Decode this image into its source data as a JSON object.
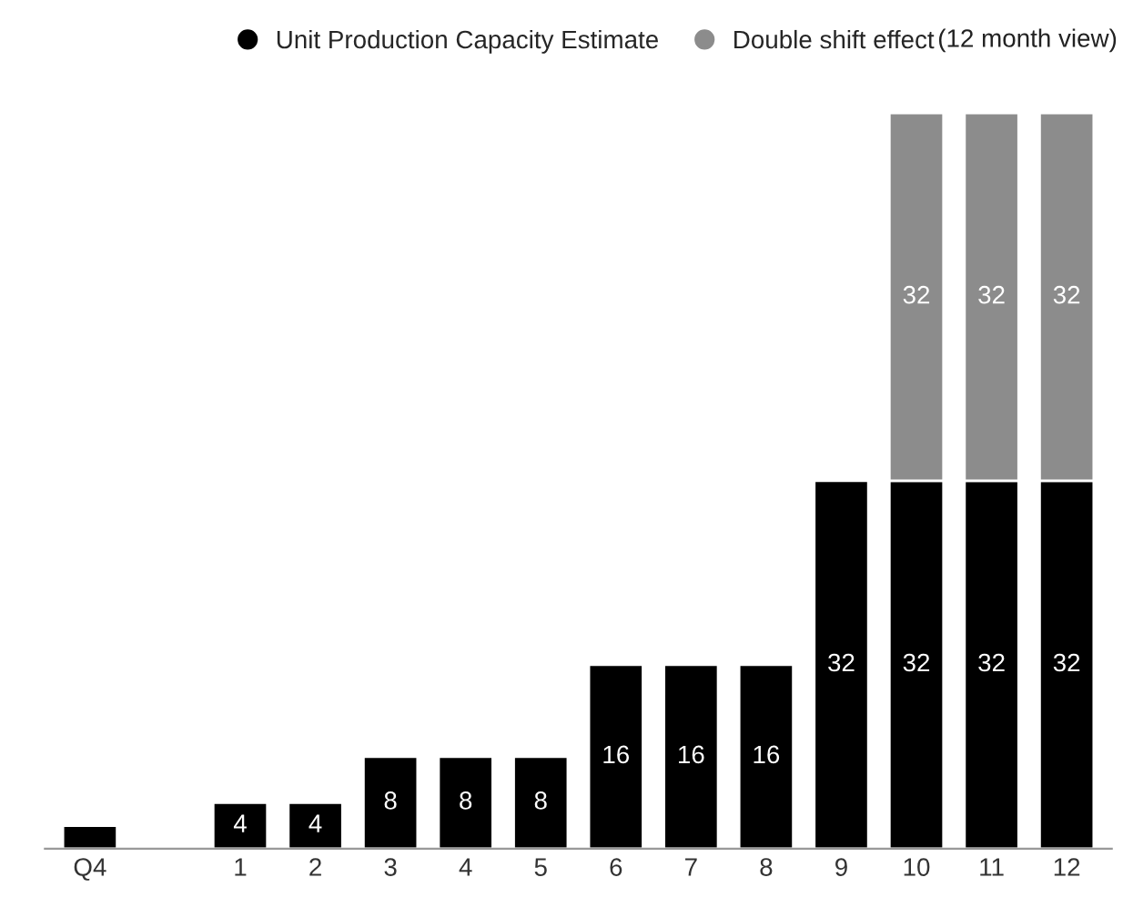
{
  "chart_data": {
    "type": "bar",
    "stacked": true,
    "subtitle": "(12 month view)",
    "categories": [
      "Q4",
      null,
      "1",
      "2",
      "3",
      "4",
      "5",
      "6",
      "7",
      "8",
      "9",
      "10",
      "11",
      "12"
    ],
    "series": [
      {
        "name": "Unit Production Capacity Estimate",
        "color": "#000000",
        "values": [
          2,
          null,
          4,
          4,
          8,
          8,
          8,
          16,
          16,
          16,
          32,
          32,
          32,
          32
        ],
        "value_labels": [
          null,
          null,
          "4",
          "4",
          "8",
          "8",
          "8",
          "16",
          "16",
          "16",
          "32",
          "32",
          "32",
          "32"
        ]
      },
      {
        "name": "Double shift effect",
        "color": "#8c8c8c",
        "values": [
          null,
          null,
          null,
          null,
          null,
          null,
          null,
          null,
          null,
          null,
          null,
          32,
          32,
          32
        ],
        "value_labels": [
          null,
          null,
          null,
          null,
          null,
          null,
          null,
          null,
          null,
          null,
          null,
          "32",
          "32",
          "32"
        ]
      }
    ],
    "legend": "top",
    "grid": false
  }
}
